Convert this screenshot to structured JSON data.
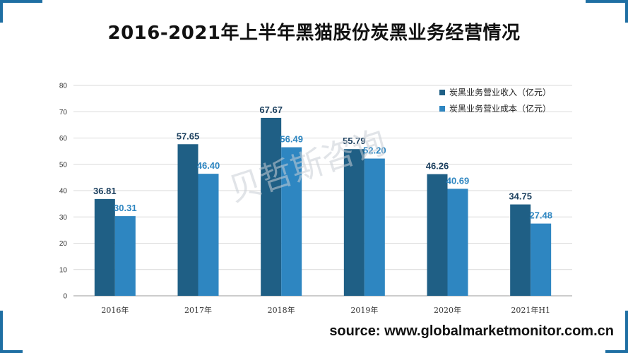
{
  "title": "2016-2021年上半年黑猫股份炭黑业务经营情况",
  "source": "source: www.globalmarketmonitor.com.cn",
  "watermark": "贝哲斯咨询",
  "colors": {
    "series1": "#1f5f85",
    "series2": "#2e86c1",
    "label1": "#1b3f5e",
    "label2": "#2e86c1",
    "accent": "#1f6fa3"
  },
  "chart_data": {
    "type": "bar",
    "categories": [
      "2016年",
      "2017年",
      "2018年",
      "2019年",
      "2020年",
      "2021年H1"
    ],
    "series": [
      {
        "name": "炭黑业务营业收入（亿元）",
        "values": [
          36.81,
          57.65,
          67.67,
          55.79,
          46.26,
          34.75
        ]
      },
      {
        "name": "炭黑业务营业成本（亿元）",
        "values": [
          30.31,
          46.4,
          56.49,
          52.2,
          40.69,
          27.48
        ]
      }
    ],
    "ylim": [
      0,
      80
    ],
    "yticks": [
      0,
      10,
      20,
      30,
      40,
      50,
      60,
      70,
      80
    ],
    "grid": true,
    "legend": "top-right",
    "xlabel": "",
    "ylabel": ""
  }
}
